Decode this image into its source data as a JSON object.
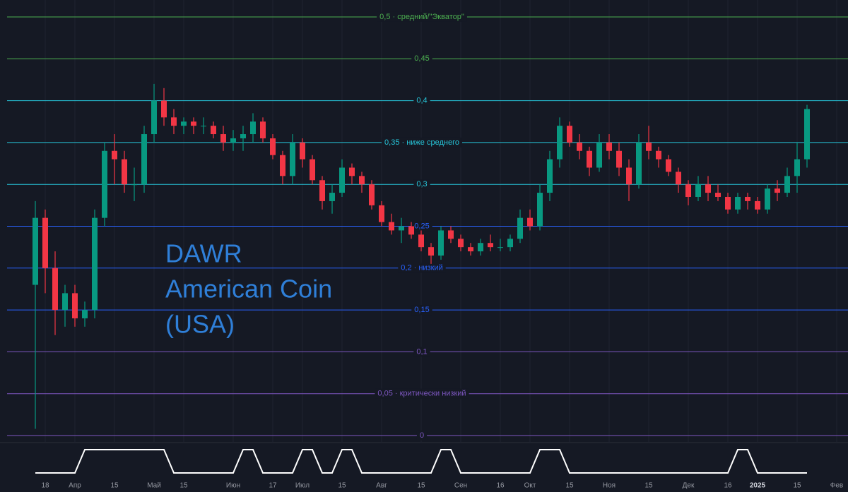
{
  "chart_data": {
    "type": "candlestick",
    "watermark": [
      "DAWR",
      "American Coin",
      "(USA)"
    ],
    "categories": [
      null,
      "18",
      null,
      null,
      "Апр",
      null,
      null,
      null,
      "15",
      null,
      null,
      null,
      "Май",
      null,
      null,
      "15",
      null,
      null,
      null,
      null,
      "Июн",
      null,
      null,
      null,
      "17",
      null,
      null,
      "Июл",
      null,
      null,
      null,
      "15",
      null,
      null,
      null,
      "Авг",
      null,
      null,
      null,
      "15",
      null,
      null,
      null,
      "Сен",
      null,
      null,
      null,
      "16",
      null,
      null,
      "Окт",
      null,
      null,
      null,
      "15",
      null,
      null,
      null,
      "Ноя",
      null,
      null,
      null,
      "15",
      null,
      null,
      null,
      "Дек",
      null,
      null,
      null,
      "16",
      null,
      null,
      "2025",
      null,
      null,
      null,
      "15",
      null,
      null,
      null,
      "Фев"
    ],
    "open": [
      0.18,
      0.26,
      0.2,
      0.15,
      0.17,
      0.14,
      0.15,
      0.26,
      0.34,
      0.33,
      0.3,
      0.3,
      0.36,
      0.4,
      0.38,
      0.37,
      0.375,
      0.37,
      0.37,
      0.36,
      0.35,
      0.355,
      0.36,
      0.375,
      0.355,
      0.335,
      0.31,
      0.35,
      0.33,
      0.305,
      0.28,
      0.29,
      0.32,
      0.31,
      0.3,
      0.275,
      0.255,
      0.245,
      0.25,
      0.24,
      0.225,
      0.215,
      0.245,
      0.235,
      0.225,
      0.22,
      0.23,
      0.225,
      0.225,
      0.235,
      0.26,
      0.25,
      0.29,
      0.33,
      0.37,
      0.35,
      0.34,
      0.32,
      0.35,
      0.34,
      0.32,
      0.3,
      0.35,
      0.34,
      0.33,
      0.315,
      0.3,
      0.285,
      0.3,
      0.29,
      0.285,
      0.27,
      0.285,
      0.28,
      0.27,
      0.295,
      0.29,
      0.31,
      0.33,
      null,
      null,
      null
    ],
    "high": [
      0.28,
      0.27,
      0.22,
      0.18,
      0.18,
      0.16,
      0.27,
      0.35,
      0.36,
      0.34,
      0.32,
      0.37,
      0.42,
      0.415,
      0.39,
      0.38,
      0.38,
      0.38,
      0.375,
      0.37,
      0.365,
      0.37,
      0.385,
      0.38,
      0.36,
      0.34,
      0.36,
      0.355,
      0.335,
      0.31,
      0.3,
      0.33,
      0.325,
      0.315,
      0.305,
      0.28,
      0.265,
      0.26,
      0.255,
      0.245,
      0.23,
      0.25,
      0.25,
      0.24,
      0.23,
      0.235,
      0.24,
      0.235,
      0.24,
      0.27,
      0.27,
      0.3,
      0.34,
      0.38,
      0.375,
      0.36,
      0.345,
      0.36,
      0.36,
      0.35,
      0.33,
      0.36,
      0.37,
      0.345,
      0.335,
      0.32,
      0.305,
      0.31,
      0.31,
      0.3,
      0.29,
      0.29,
      0.29,
      0.285,
      0.3,
      0.305,
      0.32,
      0.35,
      0.395,
      null,
      null,
      null
    ],
    "low": [
      0.008,
      0.17,
      0.12,
      0.13,
      0.13,
      0.13,
      0.14,
      0.25,
      0.3,
      0.29,
      0.28,
      0.29,
      0.35,
      0.37,
      0.36,
      0.36,
      0.36,
      0.36,
      0.355,
      0.34,
      0.34,
      0.34,
      0.35,
      0.35,
      0.33,
      0.3,
      0.3,
      0.32,
      0.3,
      0.27,
      0.265,
      0.285,
      0.3,
      0.29,
      0.27,
      0.25,
      0.24,
      0.23,
      0.235,
      0.22,
      0.205,
      0.21,
      0.23,
      0.22,
      0.215,
      0.215,
      0.22,
      0.22,
      0.22,
      0.23,
      0.245,
      0.245,
      0.28,
      0.32,
      0.345,
      0.33,
      0.31,
      0.315,
      0.33,
      0.31,
      0.28,
      0.295,
      0.33,
      0.32,
      0.31,
      0.29,
      0.275,
      0.28,
      0.28,
      0.28,
      0.265,
      0.265,
      0.27,
      0.265,
      0.265,
      0.28,
      0.285,
      0.29,
      0.32,
      null,
      null,
      null
    ],
    "close": [
      0.26,
      0.2,
      0.15,
      0.17,
      0.14,
      0.15,
      0.26,
      0.34,
      0.33,
      0.3,
      0.3,
      0.36,
      0.4,
      0.38,
      0.37,
      0.375,
      0.37,
      0.37,
      0.36,
      0.35,
      0.355,
      0.36,
      0.375,
      0.355,
      0.335,
      0.31,
      0.35,
      0.33,
      0.305,
      0.28,
      0.29,
      0.32,
      0.31,
      0.3,
      0.275,
      0.255,
      0.245,
      0.25,
      0.24,
      0.225,
      0.215,
      0.245,
      0.235,
      0.225,
      0.22,
      0.23,
      0.225,
      0.225,
      0.235,
      0.26,
      0.25,
      0.29,
      0.33,
      0.37,
      0.35,
      0.34,
      0.32,
      0.35,
      0.34,
      0.32,
      0.3,
      0.35,
      0.34,
      0.33,
      0.315,
      0.3,
      0.285,
      0.3,
      0.29,
      0.285,
      0.27,
      0.285,
      0.28,
      0.27,
      0.295,
      0.29,
      0.31,
      0.33,
      0.39,
      null,
      null,
      null
    ],
    "up_color": "#089981",
    "down_color": "#f23645",
    "ylim": [
      0,
      0.5
    ],
    "yticks": [
      {
        "value": 0.5,
        "label": "0,5 · средний/\"Экватор\""
      },
      {
        "value": 0.45,
        "label": "0,45"
      },
      {
        "value": 0.4,
        "label": "0,4"
      },
      {
        "value": 0.35,
        "label": "0,35 · ниже среднего"
      },
      {
        "value": 0.3,
        "label": "0,3"
      },
      {
        "value": 0.25,
        "label": "0,25"
      },
      {
        "value": 0.2,
        "label": "0,2 · низкий"
      },
      {
        "value": 0.15,
        "label": "0,15"
      },
      {
        "value": 0.1,
        "label": "0,1"
      },
      {
        "value": 0.05,
        "label": "0,05 · критически низкий"
      },
      {
        "value": 0,
        "label": "0"
      }
    ],
    "ytick_colors": [
      "#4caf50",
      "#4caf50",
      "#26c6da",
      "#26c6da",
      "#26c6da",
      "#2962ff",
      "#2962ff",
      "#2962ff",
      "#7e57c2",
      "#7e57c2",
      "#7e57c2"
    ],
    "indicator": {
      "color": "#ffffff",
      "ylim": [
        0,
        1
      ],
      "values": [
        0,
        0,
        0,
        0,
        0,
        1,
        1,
        1,
        1,
        1,
        1,
        1,
        1,
        1,
        0,
        0,
        0,
        0,
        0,
        0,
        0,
        1,
        1,
        0,
        0,
        0,
        0,
        1,
        1,
        0,
        0,
        1,
        1,
        0,
        0,
        0,
        0,
        0,
        0,
        0,
        0,
        1,
        1,
        0,
        0,
        0,
        0,
        0,
        0,
        0,
        0,
        1,
        1,
        1,
        0,
        0,
        0,
        0,
        0,
        0,
        0,
        0,
        0,
        0,
        0,
        0,
        0,
        0,
        0,
        0,
        0,
        1,
        1,
        0,
        0,
        0,
        0,
        0,
        0,
        null,
        null,
        null
      ]
    }
  }
}
